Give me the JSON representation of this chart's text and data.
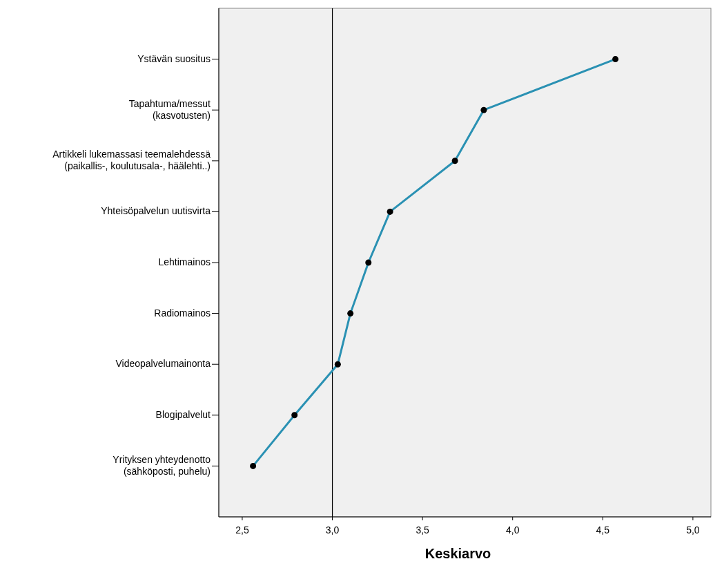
{
  "chart_data": {
    "type": "line",
    "orientation": "horizontal",
    "xlabel": "Keskiarvo",
    "categories": [
      "Ystävän suositus",
      "Tapahtuma/messut\n(kasvotusten)",
      "Artikkeli lukemassasi teemalehdessä\n(paikallis-, koulutusala-, häälehti..)",
      "Yhteisöpalvelun uutisvirta",
      "Lehtimainos",
      "Radiomainos",
      "Videopalvelumainonta",
      "Blogipalvelut",
      "Yrityksen yhteydenotto\n(sähköposti, puhelu)"
    ],
    "values": [
      4.57,
      3.84,
      3.68,
      3.32,
      3.2,
      3.1,
      3.03,
      2.79,
      2.56
    ],
    "color": "#2a91b3",
    "marker": "circle",
    "line_style": "solid",
    "grid": false,
    "xlim": [
      2.37,
      5.1
    ],
    "xticks": [
      {
        "value": 2.5,
        "label": "2,5"
      },
      {
        "value": 3,
        "label": "3,0"
      },
      {
        "value": 3.5,
        "label": "3,5"
      },
      {
        "value": 4,
        "label": "4,0"
      },
      {
        "value": 4.5,
        "label": "4,5"
      },
      {
        "value": 5,
        "label": "5,0"
      }
    ],
    "ref_lines": [
      {
        "axis": "x",
        "value": 3,
        "color": "#000000",
        "line_style": "solid"
      }
    ]
  }
}
